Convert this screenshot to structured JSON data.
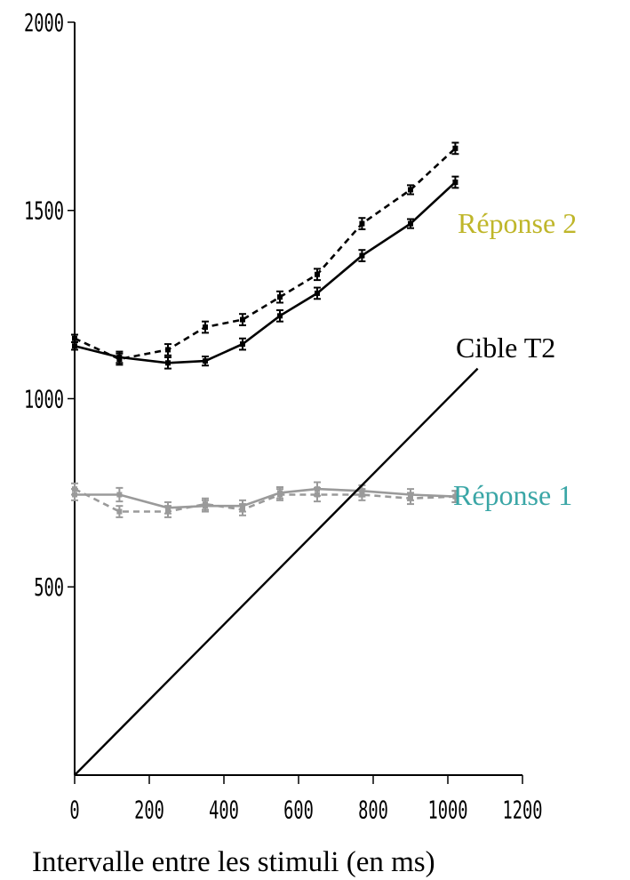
{
  "chart_data": {
    "type": "line",
    "title": "",
    "xlabel": "Intervalle entre les stimuli (en ms)",
    "ylabel": "",
    "xlim": [
      0,
      1200
    ],
    "ylim": [
      0,
      2000
    ],
    "xticks": [
      0,
      200,
      400,
      600,
      800,
      1000,
      1200
    ],
    "yticks": [
      500,
      1000,
      1500,
      2000
    ],
    "grid": false,
    "annotations": [
      {
        "text": "Réponse 2",
        "color": "#bfb62a"
      },
      {
        "text": "Cible T2",
        "color": "#000000"
      },
      {
        "text": "Réponse 1",
        "color": "#3aa6a6"
      }
    ],
    "series": [
      {
        "style": "solid",
        "color": "#000000",
        "x": [
          0,
          120,
          250,
          350,
          450,
          550,
          650,
          770,
          900,
          1020
        ],
        "y": [
          1140,
          1110,
          1095,
          1100,
          1145,
          1220,
          1280,
          1380,
          1465,
          1575
        ],
        "err": [
          10,
          15,
          15,
          12,
          15,
          15,
          15,
          15,
          12,
          15
        ]
      },
      {
        "style": "dashed",
        "color": "#000000",
        "x": [
          0,
          120,
          250,
          350,
          450,
          550,
          650,
          770,
          900,
          1020
        ],
        "y": [
          1160,
          1105,
          1130,
          1190,
          1210,
          1270,
          1330,
          1465,
          1555,
          1665
        ],
        "err": [
          10,
          15,
          15,
          15,
          15,
          15,
          15,
          15,
          12,
          15
        ]
      },
      {
        "style": "solid",
        "color": "#9a9a9a",
        "x": [
          0,
          120,
          250,
          350,
          450,
          550,
          650,
          770,
          900,
          1020
        ],
        "y": [
          745,
          745,
          710,
          715,
          715,
          750,
          760,
          755,
          745,
          740
        ],
        "err": [
          15,
          18,
          15,
          15,
          15,
          15,
          18,
          15,
          15,
          15
        ]
      },
      {
        "style": "dashed",
        "color": "#9a9a9a",
        "x": [
          0,
          120,
          250,
          350,
          450,
          550,
          650,
          770,
          900,
          1020
        ],
        "y": [
          760,
          700,
          700,
          720,
          705,
          745,
          745,
          745,
          735,
          740
        ],
        "err": [
          15,
          15,
          15,
          15,
          15,
          15,
          18,
          15,
          15,
          15
        ]
      },
      {
        "style": "solid",
        "color": "#000000",
        "x": [
          0,
          1080
        ],
        "y": [
          0,
          1080
        ]
      }
    ]
  }
}
